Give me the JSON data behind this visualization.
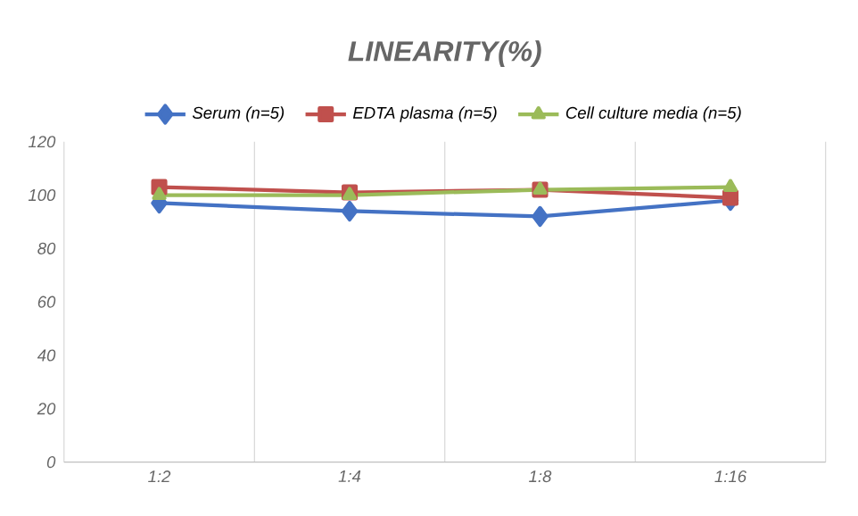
{
  "chart_data": {
    "type": "line",
    "title": "LINEARITY(%)",
    "categories": [
      "1:2",
      "1:4",
      "1:8",
      "1:16"
    ],
    "series": [
      {
        "name": "Serum (n=5)",
        "color": "#4472c4",
        "marker": "diamond",
        "values": [
          97,
          94,
          92,
          98
        ]
      },
      {
        "name": "EDTA plasma (n=5)",
        "color": "#c0504d",
        "marker": "square",
        "values": [
          103,
          101,
          102,
          99
        ]
      },
      {
        "name": "Cell culture media (n=5)",
        "color": "#9bbb59",
        "marker": "triangle",
        "values": [
          100,
          100,
          102,
          103
        ]
      }
    ],
    "ylim": [
      0,
      120
    ],
    "yticks": [
      0,
      20,
      40,
      60,
      80,
      100,
      120
    ],
    "grid": "x",
    "legend": "top"
  }
}
